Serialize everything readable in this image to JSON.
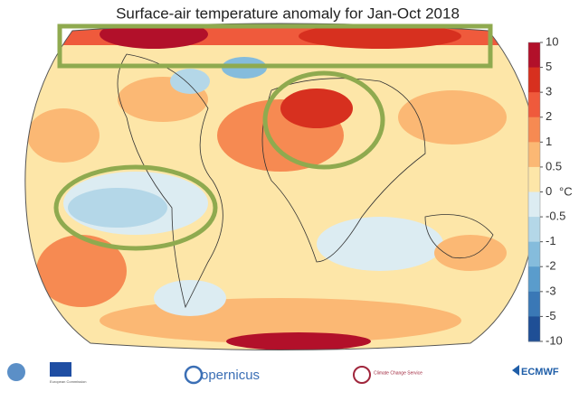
{
  "title": "Surface-air temperature anomaly for Jan-Oct 2018",
  "colorbar": {
    "unit": "°C",
    "ticks": [
      10,
      5,
      3,
      2,
      1,
      0.5,
      0,
      -0.5,
      -1,
      -2,
      -3,
      -5,
      -10
    ],
    "colors": [
      "#b2102a",
      "#d7301f",
      "#ef5a3c",
      "#f68a52",
      "#fbb874",
      "#fde6a8",
      "#dcecf2",
      "#b4d7e8",
      "#85bcdc",
      "#5a9ccc",
      "#3a78b6",
      "#1f4f96"
    ]
  },
  "logos": {
    "eu": "European Commission",
    "copernicus": "opernicus",
    "c3s": "Climate Change Service",
    "ecmwf": "ECMWF"
  }
}
